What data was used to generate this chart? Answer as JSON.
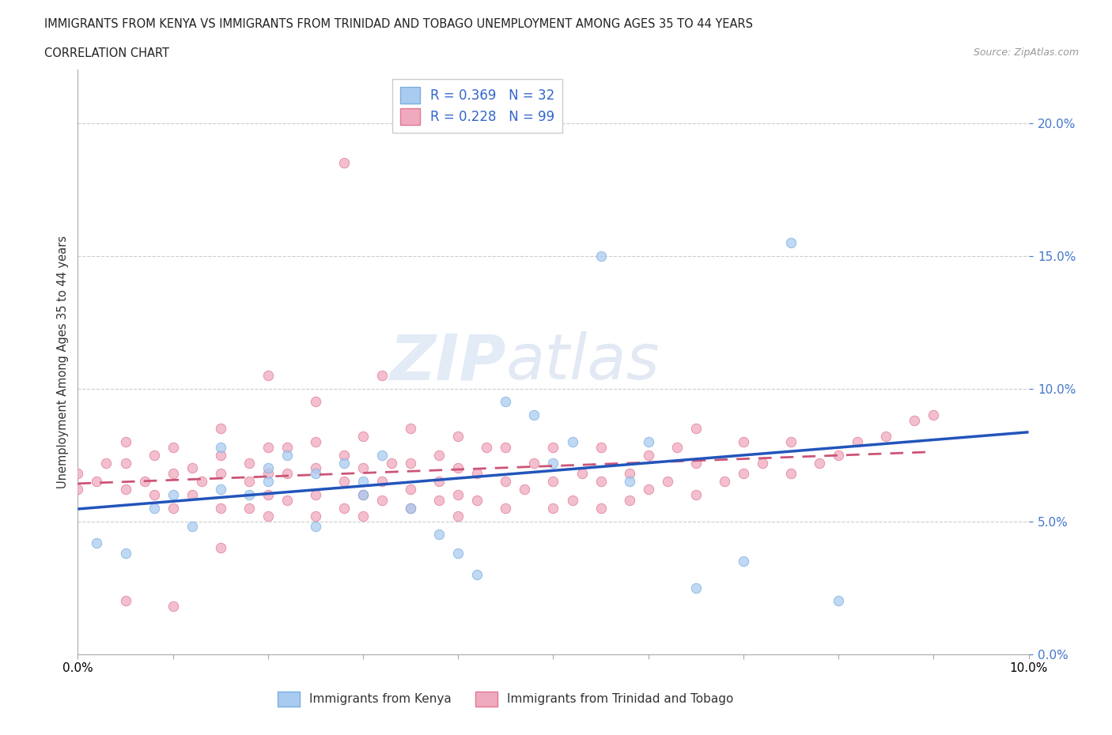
{
  "title_line1": "IMMIGRANTS FROM KENYA VS IMMIGRANTS FROM TRINIDAD AND TOBAGO UNEMPLOYMENT AMONG AGES 35 TO 44 YEARS",
  "title_line2": "CORRELATION CHART",
  "source": "Source: ZipAtlas.com",
  "ylabel_label": "Unemployment Among Ages 35 to 44 years",
  "xmin": 0.0,
  "xmax": 0.1,
  "ymin": 0.0,
  "ymax": 0.22,
  "xticks": [
    0.0,
    0.01,
    0.02,
    0.03,
    0.04,
    0.05,
    0.06,
    0.07,
    0.08,
    0.09,
    0.1
  ],
  "yticks": [
    0.0,
    0.05,
    0.1,
    0.15,
    0.2
  ],
  "kenya_color": "#aacbf0",
  "kenya_edge": "#7aaee0",
  "tt_color": "#f0aac0",
  "tt_edge": "#e07890",
  "kenya_line_color": "#2255bb",
  "tt_line_color": "#cc5577",
  "R_kenya": 0.369,
  "N_kenya": 32,
  "R_tt": 0.228,
  "N_tt": 99,
  "legend_label_kenya": "Immigrants from Kenya",
  "legend_label_tt": "Immigrants from Trinidad and Tobago",
  "watermark_zip": "ZIP",
  "watermark_atlas": "atlas",
  "kenya_scatter_x": [
    0.002,
    0.005,
    0.008,
    0.01,
    0.012,
    0.015,
    0.015,
    0.018,
    0.02,
    0.02,
    0.022,
    0.025,
    0.025,
    0.028,
    0.03,
    0.03,
    0.032,
    0.035,
    0.038,
    0.04,
    0.042,
    0.045,
    0.048,
    0.05,
    0.052,
    0.055,
    0.058,
    0.06,
    0.065,
    0.07,
    0.075,
    0.08
  ],
  "kenya_scatter_y": [
    0.042,
    0.038,
    0.055,
    0.06,
    0.048,
    0.078,
    0.062,
    0.06,
    0.07,
    0.065,
    0.075,
    0.048,
    0.068,
    0.072,
    0.06,
    0.065,
    0.075,
    0.055,
    0.045,
    0.038,
    0.03,
    0.095,
    0.09,
    0.072,
    0.08,
    0.15,
    0.065,
    0.08,
    0.025,
    0.035,
    0.155,
    0.02
  ],
  "tt_scatter_x": [
    0.0,
    0.0,
    0.002,
    0.003,
    0.005,
    0.005,
    0.005,
    0.007,
    0.008,
    0.008,
    0.01,
    0.01,
    0.01,
    0.012,
    0.012,
    0.013,
    0.015,
    0.015,
    0.015,
    0.015,
    0.018,
    0.018,
    0.018,
    0.02,
    0.02,
    0.02,
    0.02,
    0.022,
    0.022,
    0.022,
    0.025,
    0.025,
    0.025,
    0.025,
    0.025,
    0.028,
    0.028,
    0.028,
    0.03,
    0.03,
    0.03,
    0.03,
    0.032,
    0.032,
    0.033,
    0.035,
    0.035,
    0.035,
    0.035,
    0.038,
    0.038,
    0.038,
    0.04,
    0.04,
    0.04,
    0.04,
    0.042,
    0.042,
    0.043,
    0.045,
    0.045,
    0.045,
    0.047,
    0.048,
    0.05,
    0.05,
    0.05,
    0.052,
    0.053,
    0.055,
    0.055,
    0.055,
    0.058,
    0.058,
    0.06,
    0.06,
    0.062,
    0.063,
    0.065,
    0.065,
    0.065,
    0.068,
    0.07,
    0.07,
    0.072,
    0.075,
    0.075,
    0.078,
    0.08,
    0.082,
    0.085,
    0.088,
    0.09,
    0.028,
    0.032,
    0.02,
    0.015,
    0.01,
    0.005
  ],
  "tt_scatter_y": [
    0.062,
    0.068,
    0.065,
    0.072,
    0.062,
    0.072,
    0.08,
    0.065,
    0.06,
    0.075,
    0.055,
    0.068,
    0.078,
    0.06,
    0.07,
    0.065,
    0.055,
    0.068,
    0.075,
    0.085,
    0.055,
    0.065,
    0.072,
    0.052,
    0.06,
    0.068,
    0.078,
    0.058,
    0.068,
    0.078,
    0.052,
    0.06,
    0.07,
    0.08,
    0.095,
    0.055,
    0.065,
    0.075,
    0.052,
    0.06,
    0.07,
    0.082,
    0.058,
    0.065,
    0.072,
    0.055,
    0.062,
    0.072,
    0.085,
    0.058,
    0.065,
    0.075,
    0.052,
    0.06,
    0.07,
    0.082,
    0.058,
    0.068,
    0.078,
    0.055,
    0.065,
    0.078,
    0.062,
    0.072,
    0.055,
    0.065,
    0.078,
    0.058,
    0.068,
    0.055,
    0.065,
    0.078,
    0.058,
    0.068,
    0.062,
    0.075,
    0.065,
    0.078,
    0.06,
    0.072,
    0.085,
    0.065,
    0.068,
    0.08,
    0.072,
    0.068,
    0.08,
    0.072,
    0.075,
    0.08,
    0.082,
    0.088,
    0.09,
    0.185,
    0.105,
    0.105,
    0.04,
    0.018,
    0.02
  ]
}
